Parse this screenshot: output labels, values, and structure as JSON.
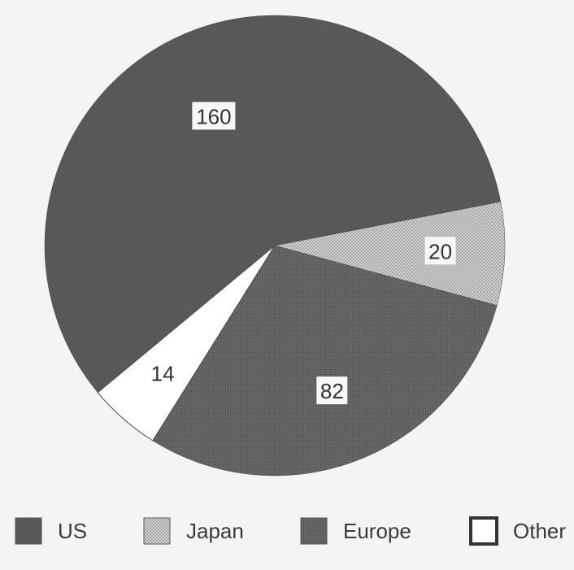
{
  "chart_data": {
    "type": "pie",
    "title": "",
    "legend_position": "bottom",
    "slices": [
      {
        "label": "US",
        "value": 160,
        "data_label": "160",
        "color": "#595959",
        "pattern": "solid"
      },
      {
        "label": "Japan",
        "value": 20,
        "data_label": "20",
        "color": "#c2c2c2",
        "pattern": "dots"
      },
      {
        "label": "Europe",
        "value": 82,
        "data_label": "82",
        "color": "#626262",
        "pattern": "fine-dots"
      },
      {
        "label": "Other",
        "value": 14,
        "data_label": "14",
        "color": "#ffffff",
        "pattern": "white"
      }
    ]
  }
}
